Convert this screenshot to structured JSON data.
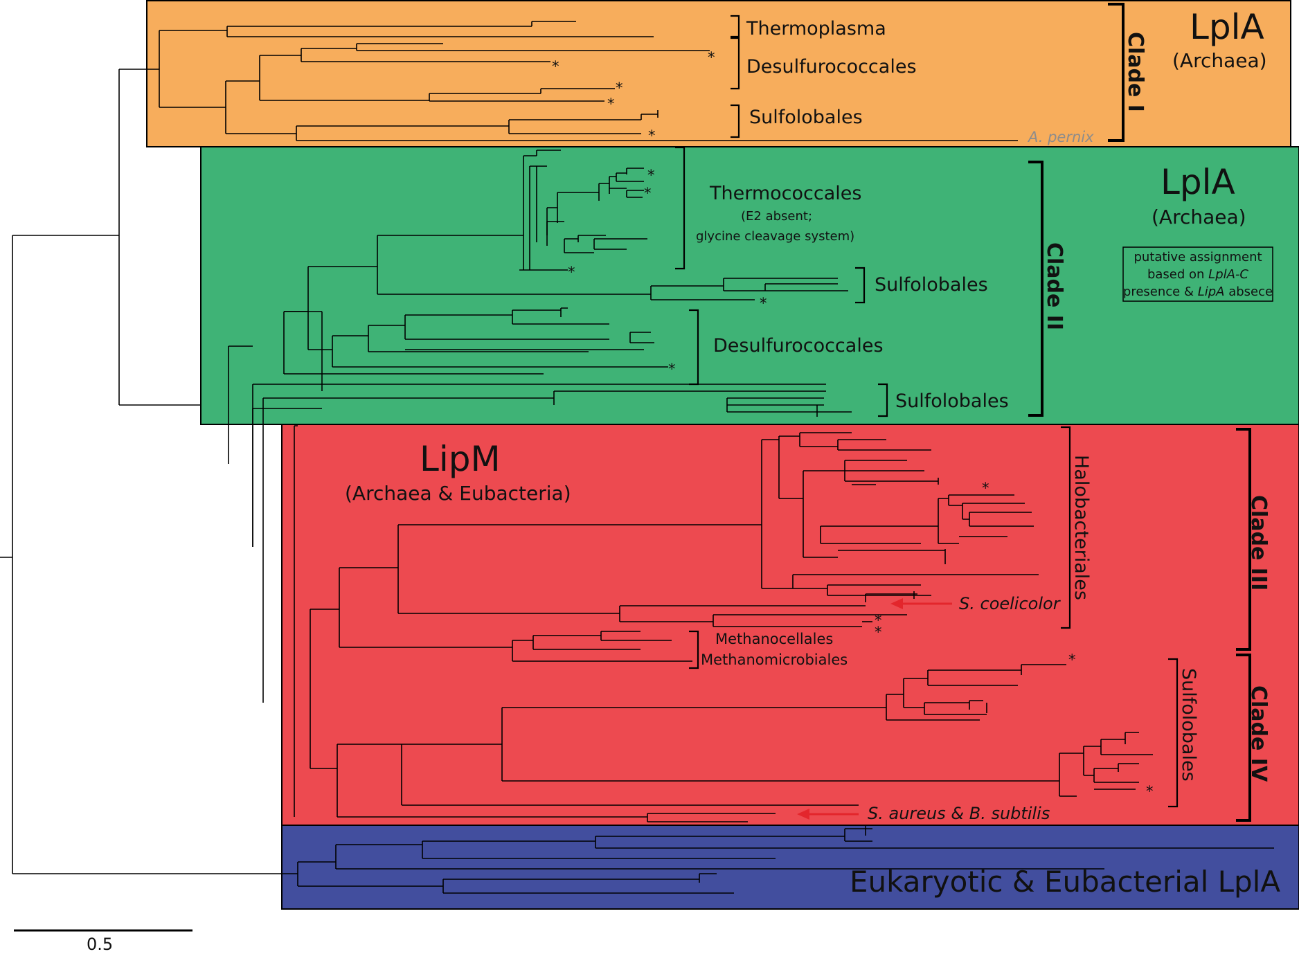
{
  "colors": {
    "clade_I": "#f7ad5c",
    "clade_II": "#3fb376",
    "lipm": "#ed4a50",
    "eukaryotic": "#424e9e",
    "arrow": "#e3262c",
    "line": "#000000"
  },
  "regions": {
    "lpla_archaea_1": {
      "title": "LplA",
      "subtitle": "(Archaea)",
      "clade": "Clade I"
    },
    "lpla_archaea_2": {
      "title": "LplA",
      "subtitle": "(Archaea)",
      "clade": "Clade II"
    },
    "lipm": {
      "title": "LipM",
      "subtitle": "(Archaea & Eubacteria)",
      "clade_a": "Clade III",
      "clade_b": "Clade IV"
    },
    "eukaryotic": {
      "title": "Eukaryotic & Eubacterial LplA"
    }
  },
  "taxa": {
    "thermoplasma": "Thermoplasma",
    "desulfurococcales_1": "Desulfurococcales",
    "sulfolobales_1": "Sulfolobales",
    "a_pernix": "A. pernix",
    "thermococcales": "Thermococcales",
    "thermococcales_note_1": "(E2 absent;",
    "thermococcales_note_2": "glycine cleavage system)",
    "sulfolobales_2": "Sulfolobales",
    "desulfurococcales_2": "Desulfurococcales",
    "sulfolobales_3": "Sulfolobales",
    "halobacteriales": "Halobacteriales",
    "s_coelicolor": "S. coelicolor",
    "methanocellales": "Methanocellales",
    "methanomicrobiales": "Methanomicrobiales",
    "sulfolobales_4": "Sulfolobales",
    "s_aureus": "S. aureus & B. subtilis"
  },
  "note_box": {
    "line1": "putative assignment",
    "line2_a": "based on ",
    "line2_b": "LplA-C",
    "line3_a": "presence & ",
    "line3_b": "LipA",
    "line3_c": " absece"
  },
  "scale_bar": {
    "label": "0.5"
  },
  "star": "*"
}
